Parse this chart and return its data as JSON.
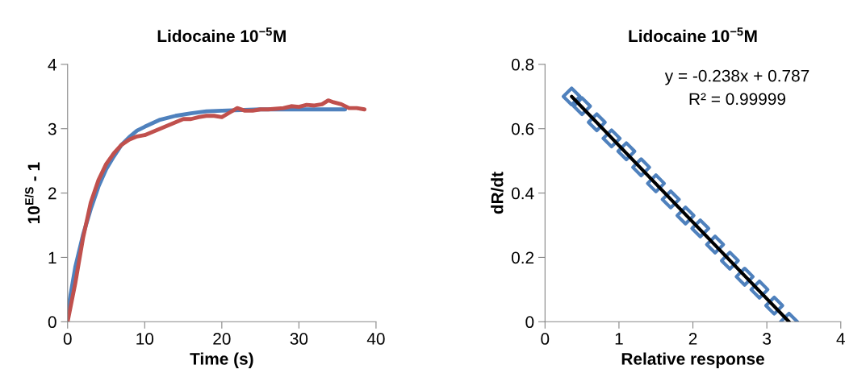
{
  "chart_data": [
    {
      "type": "line",
      "title": "Lidocaine 10$^{−5}$M",
      "xlabel": "Time (s)",
      "ylabel": "10$^{E/S}$ - 1",
      "xlim": [
        0,
        40
      ],
      "xticks": [
        0,
        10,
        20,
        30,
        40
      ],
      "ylim": [
        0,
        4
      ],
      "yticks": [
        0,
        1,
        2,
        3,
        4
      ],
      "grid": false,
      "marker": "none",
      "line_style": "solid",
      "series": [
        {
          "color": "#4f81bd",
          "x": [
            0,
            1,
            2,
            3,
            4,
            5,
            6,
            7,
            8,
            9,
            10,
            12,
            14,
            16,
            18,
            20,
            25,
            30,
            36
          ],
          "values": [
            0.15,
            0.85,
            1.35,
            1.75,
            2.1,
            2.37,
            2.57,
            2.75,
            2.87,
            2.97,
            3.03,
            3.14,
            3.2,
            3.24,
            3.27,
            3.28,
            3.3,
            3.3,
            3.3
          ]
        },
        {
          "color": "#c0504d",
          "x": [
            0,
            0.5,
            1,
            2,
            3,
            4,
            5,
            6,
            7,
            8,
            9,
            10,
            11,
            12,
            13,
            14,
            15,
            16,
            17,
            18,
            19,
            20,
            21,
            22,
            23,
            24,
            25,
            26,
            27,
            28,
            29,
            30,
            31,
            32,
            33,
            33.8,
            34.5,
            35.5,
            36.5,
            37.5,
            38.5
          ],
          "values": [
            0,
            0.3,
            0.6,
            1.3,
            1.85,
            2.2,
            2.45,
            2.62,
            2.75,
            2.83,
            2.88,
            2.9,
            2.95,
            3.0,
            3.05,
            3.1,
            3.15,
            3.15,
            3.18,
            3.2,
            3.2,
            3.18,
            3.25,
            3.32,
            3.28,
            3.28,
            3.3,
            3.3,
            3.31,
            3.32,
            3.35,
            3.34,
            3.37,
            3.36,
            3.38,
            3.44,
            3.41,
            3.38,
            3.32,
            3.32,
            3.3
          ]
        }
      ]
    },
    {
      "type": "scatter",
      "title": "Lidocaine 10$^{−5}$M",
      "xlabel": "Relative response",
      "ylabel": "dR/dt",
      "xlim": [
        0,
        4
      ],
      "xticks": [
        0,
        1,
        2,
        3,
        4
      ],
      "ylim": [
        0,
        0.8
      ],
      "yticks": [
        0,
        0.2,
        0.4,
        0.6,
        0.8
      ],
      "grid": false,
      "marker": "diamond",
      "annotations": [
        "y = -0.238x + 0.787",
        "R² = 0.99999"
      ],
      "series": [
        {
          "color": "#4f81bd",
          "x": [
            0.36,
            0.5,
            0.7,
            0.9,
            1.1,
            1.3,
            1.5,
            1.7,
            1.9,
            2.1,
            2.3,
            2.5,
            2.7,
            2.9,
            3.1,
            3.3
          ],
          "values": [
            0.7,
            0.67,
            0.62,
            0.57,
            0.53,
            0.48,
            0.43,
            0.38,
            0.33,
            0.29,
            0.24,
            0.19,
            0.14,
            0.1,
            0.05,
            0.0
          ]
        },
        {
          "type": "line",
          "color": "#000000",
          "line_style": "solid",
          "marker": "none",
          "x": [
            0.36,
            3.3
          ],
          "values": [
            0.7,
            0.0
          ]
        }
      ]
    }
  ]
}
